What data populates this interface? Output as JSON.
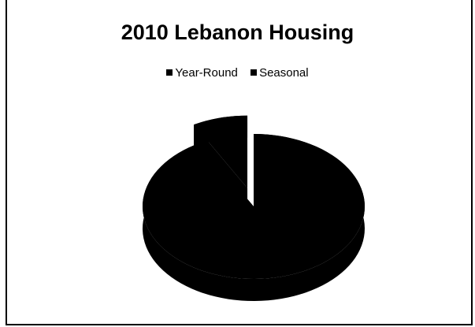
{
  "chart_data": {
    "type": "pie",
    "style": "3d-exploded",
    "title": "2010 Lebanon Housing",
    "legend_position": "top",
    "slices": [
      {
        "name": "Year-Round",
        "value": 92,
        "color": "#000000"
      },
      {
        "name": "Seasonal",
        "value": 8,
        "color": "#000000"
      }
    ]
  }
}
